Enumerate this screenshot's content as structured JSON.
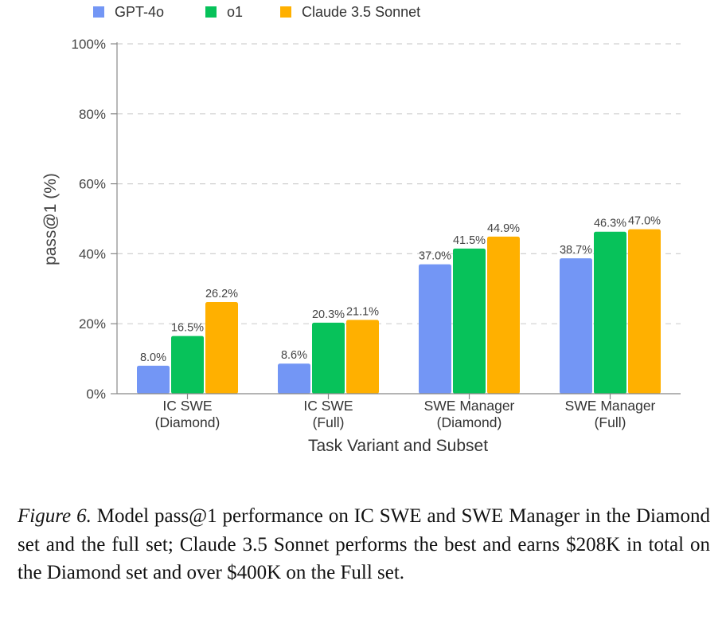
{
  "chart_data": {
    "type": "bar",
    "categories": [
      [
        "IC SWE",
        "(Diamond)"
      ],
      [
        "IC SWE",
        "(Full)"
      ],
      [
        "SWE Manager",
        "(Diamond)"
      ],
      [
        "SWE Manager",
        "(Full)"
      ]
    ],
    "series": [
      {
        "name": "GPT-4o",
        "color": "#7396f5",
        "values": [
          8.0,
          8.6,
          37.0,
          38.7
        ],
        "labels": [
          "8.0%",
          "8.6%",
          "37.0%",
          "38.7%"
        ]
      },
      {
        "name": "o1",
        "color": "#07c25a",
        "values": [
          16.5,
          20.3,
          41.5,
          46.3
        ],
        "labels": [
          "16.5%",
          "20.3%",
          "41.5%",
          "46.3%"
        ]
      },
      {
        "name": "Claude 3.5 Sonnet",
        "color": "#ffb000",
        "values": [
          26.2,
          21.1,
          44.9,
          47.0
        ],
        "labels": [
          "26.2%",
          "21.1%",
          "44.9%",
          "47.0%"
        ]
      }
    ],
    "xlabel": "Task Variant and Subset",
    "ylabel": "pass@1 (%)",
    "ylim": [
      0,
      100
    ],
    "yticks": [
      0,
      20,
      40,
      60,
      80,
      100
    ],
    "ytick_labels": [
      "0%",
      "20%",
      "40%",
      "60%",
      "80%",
      "100%"
    ],
    "grid": "horizontal-dashed",
    "legend": "top-left"
  },
  "caption": {
    "lead": "Figure 6.",
    "text": " Model pass@1 performance on IC SWE and SWE Manager in the Diamond set and the full set; Claude 3.5 Sonnet performs the best and earns $208K in total on the Diamond set and over $400K on the Full set."
  }
}
